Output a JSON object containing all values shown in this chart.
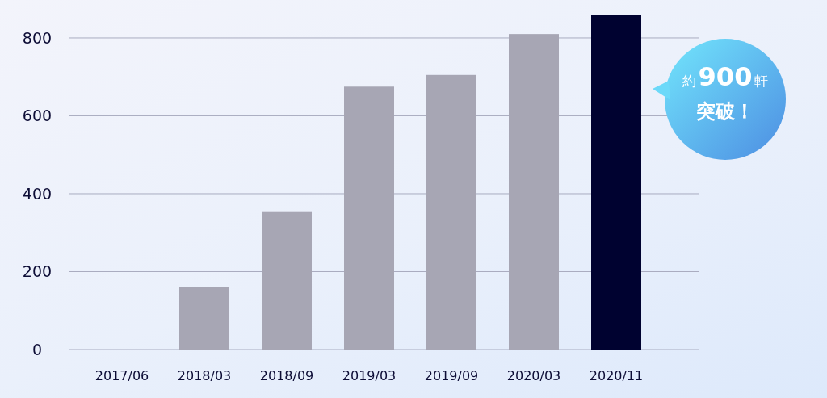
{
  "chart_data": {
    "type": "bar",
    "categories": [
      "2017/06",
      "2018/03",
      "2018/09",
      "2019/03",
      "2019/09",
      "2020/03",
      "2020/11"
    ],
    "values": [
      0,
      160,
      355,
      675,
      705,
      810,
      860
    ],
    "colors": [
      "#a7a6b4",
      "#a7a6b4",
      "#a7a6b4",
      "#a7a6b4",
      "#a7a6b4",
      "#a7a6b4",
      "#000230"
    ],
    "ylim": [
      0,
      860
    ],
    "yticks": [
      0,
      200,
      400,
      600,
      800
    ],
    "grid": "y",
    "annotations": [
      "約**900**軒",
      "突破！"
    ]
  }
}
